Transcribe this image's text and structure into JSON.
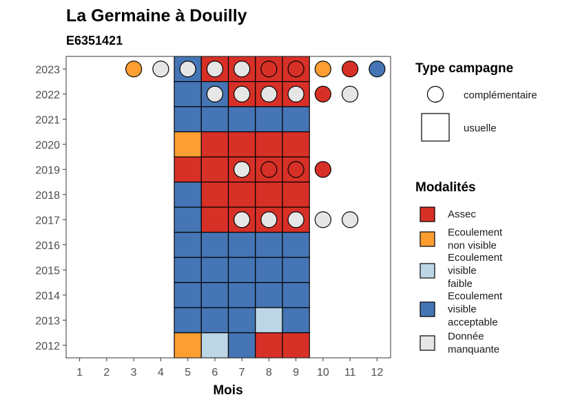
{
  "chart_data": {
    "type": "heatmap",
    "title": "La Germaine à Douilly",
    "subtitle": "E6351421",
    "xlabel": "Mois",
    "ylabel": "",
    "x_ticks": [
      1,
      2,
      3,
      4,
      5,
      6,
      7,
      8,
      9,
      10,
      11,
      12
    ],
    "y_ticks": [
      2012,
      2013,
      2014,
      2015,
      2016,
      2017,
      2018,
      2019,
      2020,
      2021,
      2022,
      2023
    ],
    "xlim": [
      0.5,
      12.5
    ],
    "ylim": [
      2011.5,
      2023.5
    ],
    "grid": false,
    "legend_position": "right",
    "colors": {
      "Assec": "#d73027",
      "Ecoulement non visible": "#fd9e33",
      "Ecoulement visible faible": "#bcd6e6",
      "Ecoulement visible acceptable": "#4575b4",
      "Donnée manquante": "#e6e6e6"
    },
    "legend_campagne": {
      "title": "Type campagne",
      "items": [
        {
          "key": "complementaire",
          "label": "complémentaire",
          "shape": "circle"
        },
        {
          "key": "usuelle",
          "label": "usuelle",
          "shape": "square"
        }
      ]
    },
    "legend_modalites": {
      "title": "Modalités",
      "items": [
        {
          "key": "Assec",
          "lines": [
            "Assec"
          ]
        },
        {
          "key": "Ecoulement non visible",
          "lines": [
            "Ecoulement",
            "non visible"
          ]
        },
        {
          "key": "Ecoulement visible faible",
          "lines": [
            "Ecoulement",
            "visible",
            "faible"
          ]
        },
        {
          "key": "Ecoulement visible acceptable",
          "lines": [
            "Ecoulement",
            "visible",
            "acceptable"
          ]
        },
        {
          "key": "Donnée manquante",
          "lines": [
            "Donnée",
            "manquante"
          ]
        }
      ]
    },
    "usuelle": [
      {
        "year": 2012,
        "values": {
          "5": "Ecoulement non visible",
          "6": "Ecoulement visible faible",
          "7": "Ecoulement visible acceptable",
          "8": "Assec",
          "9": "Assec"
        }
      },
      {
        "year": 2013,
        "values": {
          "5": "Ecoulement visible acceptable",
          "6": "Ecoulement visible acceptable",
          "7": "Ecoulement visible acceptable",
          "8": "Ecoulement visible faible",
          "9": "Ecoulement visible acceptable"
        }
      },
      {
        "year": 2014,
        "values": {
          "5": "Ecoulement visible acceptable",
          "6": "Ecoulement visible acceptable",
          "7": "Ecoulement visible acceptable",
          "8": "Ecoulement visible acceptable",
          "9": "Ecoulement visible acceptable"
        }
      },
      {
        "year": 2015,
        "values": {
          "5": "Ecoulement visible acceptable",
          "6": "Ecoulement visible acceptable",
          "7": "Ecoulement visible acceptable",
          "8": "Ecoulement visible acceptable",
          "9": "Ecoulement visible acceptable"
        }
      },
      {
        "year": 2016,
        "values": {
          "5": "Ecoulement visible acceptable",
          "6": "Ecoulement visible acceptable",
          "7": "Ecoulement visible acceptable",
          "8": "Ecoulement visible acceptable",
          "9": "Ecoulement visible acceptable"
        }
      },
      {
        "year": 2017,
        "values": {
          "5": "Ecoulement visible acceptable",
          "6": "Assec",
          "7": "Assec",
          "8": "Assec",
          "9": "Assec"
        }
      },
      {
        "year": 2018,
        "values": {
          "5": "Ecoulement visible acceptable",
          "6": "Assec",
          "7": "Assec",
          "8": "Assec",
          "9": "Assec"
        }
      },
      {
        "year": 2019,
        "values": {
          "5": "Assec",
          "6": "Assec",
          "7": "Assec",
          "8": "Assec",
          "9": "Assec"
        }
      },
      {
        "year": 2020,
        "values": {
          "5": "Ecoulement non visible",
          "6": "Assec",
          "7": "Assec",
          "8": "Assec",
          "9": "Assec"
        }
      },
      {
        "year": 2021,
        "values": {
          "5": "Ecoulement visible acceptable",
          "6": "Ecoulement visible acceptable",
          "7": "Ecoulement visible acceptable",
          "8": "Ecoulement visible acceptable",
          "9": "Ecoulement visible acceptable"
        }
      },
      {
        "year": 2022,
        "values": {
          "5": "Ecoulement visible acceptable",
          "6": "Ecoulement visible acceptable",
          "7": "Assec",
          "8": "Assec",
          "9": "Assec"
        }
      },
      {
        "year": 2023,
        "values": {
          "5": "Ecoulement visible acceptable",
          "6": "Assec",
          "7": "Assec",
          "8": "Assec",
          "9": "Assec"
        }
      }
    ],
    "complementaire": [
      {
        "year": 2017,
        "values": {
          "7": "Donnée manquante",
          "8": "Donnée manquante",
          "9": "Donnée manquante",
          "10": "Donnée manquante",
          "11": "Donnée manquante"
        }
      },
      {
        "year": 2019,
        "values": {
          "7": "Donnée manquante",
          "8": "Assec",
          "9": "Assec",
          "10": "Assec"
        }
      },
      {
        "year": 2022,
        "values": {
          "6": "Donnée manquante",
          "7": "Donnée manquante",
          "8": "Donnée manquante",
          "9": "Donnée manquante",
          "10": "Assec",
          "11": "Donnée manquante"
        }
      },
      {
        "year": 2023,
        "values": {
          "3": "Ecoulement non visible",
          "4": "Donnée manquante",
          "5": "Donnée manquante",
          "6": "Donnée manquante",
          "7": "Donnée manquante",
          "8": "Assec",
          "9": "Assec",
          "10": "Ecoulement non visible",
          "11": "Assec",
          "12": "Ecoulement visible acceptable"
        }
      }
    ]
  }
}
